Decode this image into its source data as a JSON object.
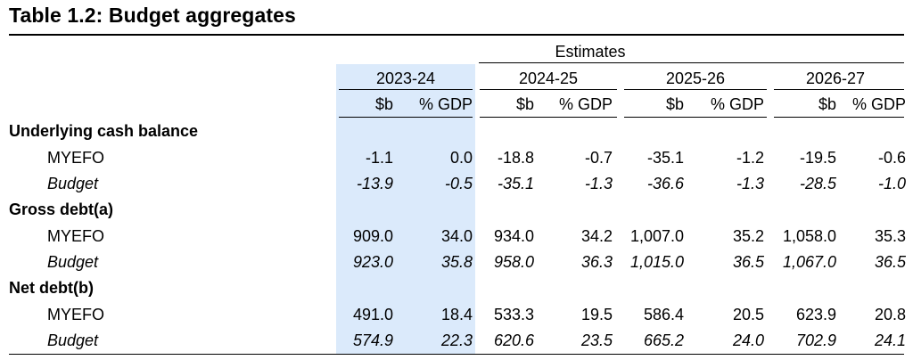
{
  "title": "Table 1.2: Budget aggregates",
  "estimates_label": "Estimates",
  "years": [
    "2023-24",
    "2024-25",
    "2025-26",
    "2026-27"
  ],
  "sub_headers": {
    "b": "$b",
    "gdp": "% GDP"
  },
  "sections": [
    {
      "label": "Underlying cash balance",
      "rows": [
        {
          "label": "MYEFO",
          "italic": false,
          "values": [
            "-1.1",
            "0.0",
            "-18.8",
            "-0.7",
            "-35.1",
            "-1.2",
            "-19.5",
            "-0.6"
          ]
        },
        {
          "label": "Budget",
          "italic": true,
          "values": [
            "-13.9",
            "-0.5",
            "-35.1",
            "-1.3",
            "-36.6",
            "-1.3",
            "-28.5",
            "-1.0"
          ]
        }
      ]
    },
    {
      "label": "Gross debt(a)",
      "rows": [
        {
          "label": "MYEFO",
          "italic": false,
          "values": [
            "909.0",
            "34.0",
            "934.0",
            "34.2",
            "1,007.0",
            "35.2",
            "1,058.0",
            "35.3"
          ]
        },
        {
          "label": "Budget",
          "italic": true,
          "values": [
            "923.0",
            "35.8",
            "958.0",
            "36.3",
            "1,015.0",
            "36.5",
            "1,067.0",
            "36.5"
          ]
        }
      ]
    },
    {
      "label": "Net debt(b)",
      "rows": [
        {
          "label": "MYEFO",
          "italic": false,
          "values": [
            "491.0",
            "18.4",
            "533.3",
            "19.5",
            "586.4",
            "20.5",
            "623.9",
            "20.8"
          ]
        },
        {
          "label": "Budget",
          "italic": true,
          "values": [
            "574.9",
            "22.3",
            "620.6",
            "23.5",
            "665.2",
            "24.0",
            "702.9",
            "24.1"
          ]
        }
      ]
    }
  ]
}
